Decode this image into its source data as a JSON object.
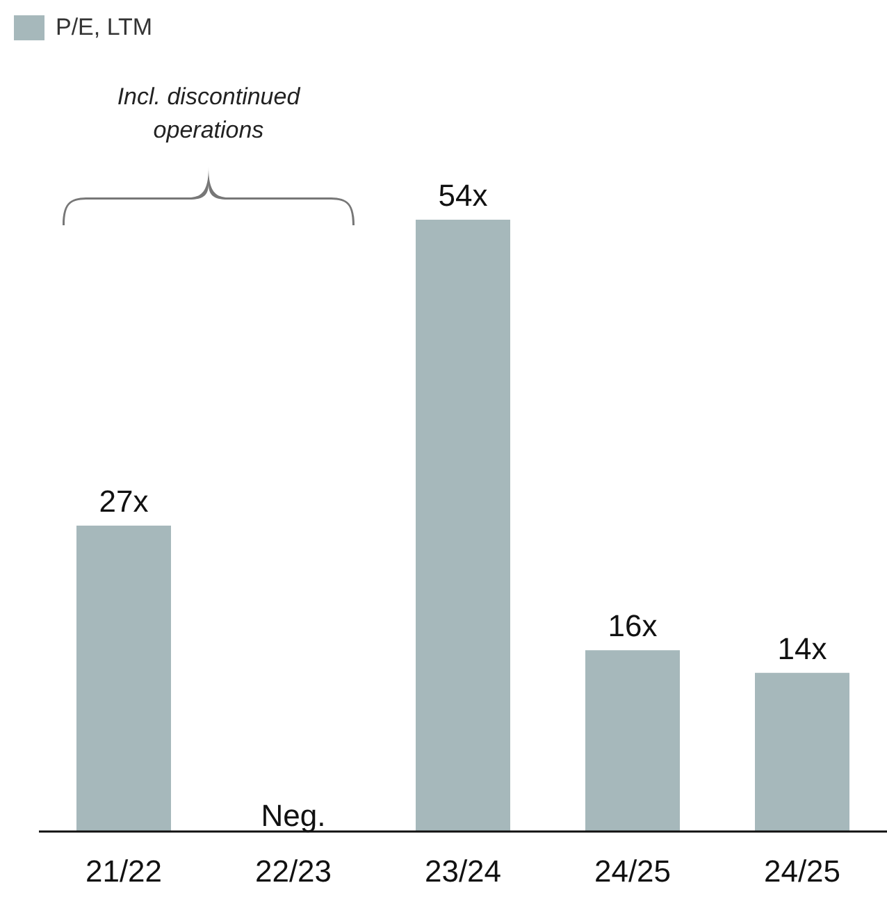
{
  "chart_data": {
    "type": "bar",
    "categories": [
      "21/22",
      "22/23",
      "23/24",
      "24/25",
      "24/25"
    ],
    "series": [
      {
        "name": "P/E, LTM",
        "color": "#a6b8bb",
        "values": [
          27,
          null,
          54,
          16,
          14
        ],
        "value_labels": [
          "27x",
          "Neg.",
          "54x",
          "16x",
          "14x"
        ]
      }
    ],
    "annotations": [
      "Incl. discontinued operations"
    ],
    "legend": "top left",
    "grid": false
  }
}
